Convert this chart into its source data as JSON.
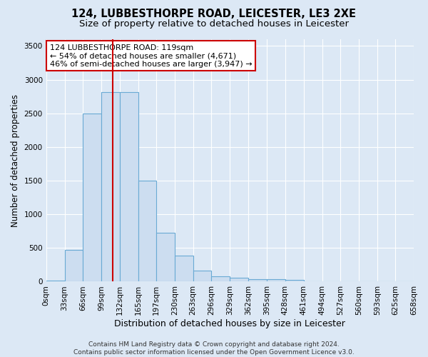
{
  "title": "124, LUBBESTHORPE ROAD, LEICESTER, LE3 2XE",
  "subtitle": "Size of property relative to detached houses in Leicester",
  "xlabel": "Distribution of detached houses by size in Leicester",
  "ylabel": "Number of detached properties",
  "footer_line1": "Contains HM Land Registry data © Crown copyright and database right 2024.",
  "footer_line2": "Contains public sector information licensed under the Open Government Licence v3.0.",
  "bin_edges": [
    0,
    33,
    66,
    99,
    132,
    165,
    197,
    230,
    263,
    296,
    329,
    362,
    395,
    428,
    461,
    494,
    527,
    560,
    593,
    625,
    658
  ],
  "bar_heights": [
    20,
    470,
    2500,
    2820,
    2820,
    1500,
    730,
    390,
    160,
    75,
    55,
    40,
    40,
    25,
    10,
    5,
    2,
    1,
    0,
    0
  ],
  "bar_color": "#ccddf0",
  "bar_edge_color": "#6aaad4",
  "property_size": 119,
  "vline_color": "#cc0000",
  "annotation_line1": "124 LUBBESTHORPE ROAD: 119sqm",
  "annotation_line2": "← 54% of detached houses are smaller (4,671)",
  "annotation_line3": "46% of semi-detached houses are larger (3,947) →",
  "annotation_box_color": "#ffffff",
  "annotation_box_edge_color": "#cc0000",
  "ylim": [
    0,
    3600
  ],
  "yticks": [
    0,
    500,
    1000,
    1500,
    2000,
    2500,
    3000,
    3500
  ],
  "xlim": [
    0,
    658
  ],
  "bg_color": "#dce8f5",
  "plot_bg_color": "#dce8f5",
  "grid_color": "#ffffff",
  "title_fontsize": 10.5,
  "subtitle_fontsize": 9.5,
  "ylabel_fontsize": 8.5,
  "xlabel_fontsize": 9,
  "tick_fontsize": 7.5,
  "annotation_fontsize": 8,
  "footer_fontsize": 6.5
}
